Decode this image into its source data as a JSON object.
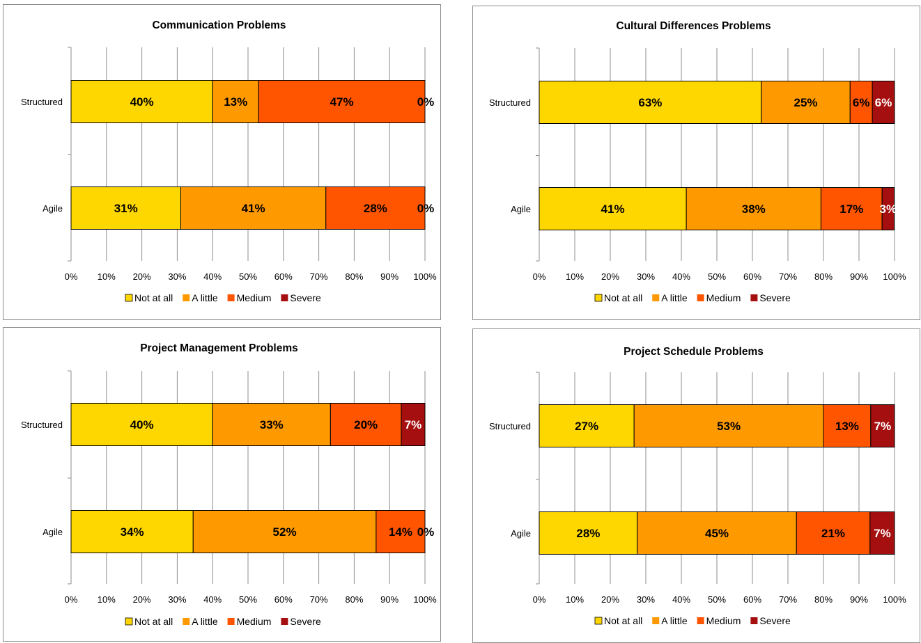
{
  "legend_labels": [
    "Not at all",
    "A little",
    "Medium",
    "Severe"
  ],
  "colors": {
    "Not at all": "#FFD700",
    "A little": "#FF9900",
    "Medium": "#FF5500",
    "Severe": "#A50F0F"
  },
  "x_ticks": [
    "0%",
    "10%",
    "20%",
    "30%",
    "40%",
    "50%",
    "60%",
    "70%",
    "80%",
    "90%",
    "100%"
  ],
  "chart_data": [
    {
      "type": "bar",
      "orientation": "horizontal",
      "stacked": "percent",
      "title": "Communication Problems",
      "categories": [
        "Structured",
        "Agile"
      ],
      "xlim": [
        0,
        100
      ],
      "grid": true,
      "legend": "bottom",
      "series": [
        {
          "name": "Not at all",
          "values": [
            40,
            31
          ],
          "labels": [
            "40%",
            "31%"
          ]
        },
        {
          "name": "A little",
          "values": [
            13,
            41
          ],
          "labels": [
            "13%",
            "41%"
          ]
        },
        {
          "name": "Medium",
          "values": [
            47,
            28
          ],
          "labels": [
            "47%",
            "28%"
          ]
        },
        {
          "name": "Severe",
          "values": [
            0,
            0
          ],
          "labels": [
            "0%",
            "0%"
          ]
        }
      ]
    },
    {
      "type": "bar",
      "orientation": "horizontal",
      "stacked": "percent",
      "title": "Cultural Differences Problems",
      "categories": [
        "Structured",
        "Agile"
      ],
      "xlim": [
        0,
        100
      ],
      "grid": true,
      "legend": "bottom",
      "series": [
        {
          "name": "Not at all",
          "values": [
            62.5,
            41.4
          ],
          "labels": [
            "63%",
            "41%"
          ]
        },
        {
          "name": "A little",
          "values": [
            25,
            37.9
          ],
          "labels": [
            "25%",
            "38%"
          ]
        },
        {
          "name": "Medium",
          "values": [
            6.25,
            17.2
          ],
          "labels": [
            "6%",
            "17%"
          ]
        },
        {
          "name": "Severe",
          "values": [
            6.25,
            3.4
          ],
          "labels": [
            "6%",
            "3%"
          ]
        }
      ]
    },
    {
      "type": "bar",
      "orientation": "horizontal",
      "stacked": "percent",
      "title": "Project Management Problems",
      "categories": [
        "Structured",
        "Agile"
      ],
      "xlim": [
        0,
        100
      ],
      "grid": true,
      "legend": "bottom",
      "series": [
        {
          "name": "Not at all",
          "values": [
            40,
            34.5
          ],
          "labels": [
            "40%",
            "34%"
          ]
        },
        {
          "name": "A little",
          "values": [
            33.3,
            51.7
          ],
          "labels": [
            "33%",
            "52%"
          ]
        },
        {
          "name": "Medium",
          "values": [
            20,
            13.8
          ],
          "labels": [
            "20%",
            "14%"
          ]
        },
        {
          "name": "Severe",
          "values": [
            6.7,
            0
          ],
          "labels": [
            "7%",
            "0%"
          ]
        }
      ]
    },
    {
      "type": "bar",
      "orientation": "horizontal",
      "stacked": "percent",
      "title": "Project Schedule Problems",
      "categories": [
        "Structured",
        "Agile"
      ],
      "xlim": [
        0,
        100
      ],
      "grid": true,
      "legend": "bottom",
      "series": [
        {
          "name": "Not at all",
          "values": [
            26.7,
            27.6
          ],
          "labels": [
            "27%",
            "28%"
          ]
        },
        {
          "name": "A little",
          "values": [
            53.3,
            44.8
          ],
          "labels": [
            "53%",
            "45%"
          ]
        },
        {
          "name": "Medium",
          "values": [
            13.3,
            20.7
          ],
          "labels": [
            "13%",
            "21%"
          ]
        },
        {
          "name": "Severe",
          "values": [
            6.7,
            6.9
          ],
          "labels": [
            "7%",
            "7%"
          ]
        }
      ]
    }
  ]
}
